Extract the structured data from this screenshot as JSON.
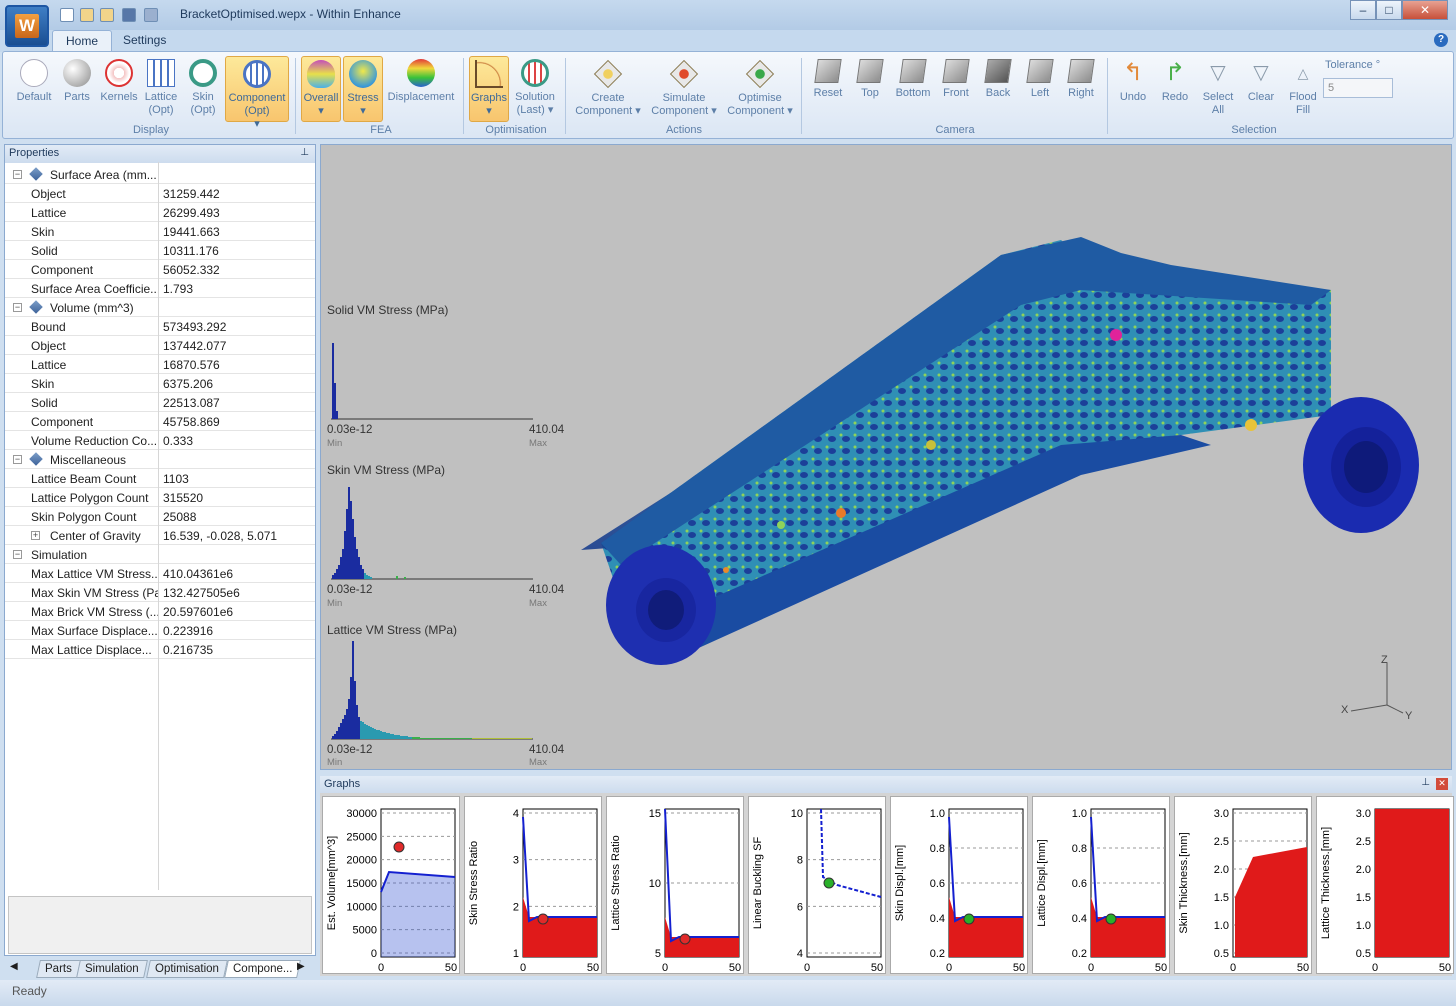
{
  "window": {
    "title": "BracketOptimised.wepx - Within Enhance",
    "app_letter": "W",
    "controls": {
      "minimize": "–",
      "maximize": "□",
      "close": "✕"
    }
  },
  "ribbon": {
    "tabs": [
      "Home",
      "Settings"
    ],
    "help": "?",
    "groups": {
      "display": "Display",
      "fea": "FEA",
      "optimisation": "Optimisation",
      "actions": "Actions",
      "camera": "Camera",
      "selection": "Selection"
    },
    "display_buttons": [
      "Default",
      "Parts",
      "Kernels",
      "Lattice (Opt)",
      "Skin (Opt)",
      "Component (Opt)"
    ],
    "fea_buttons": [
      "Overall",
      "Stress",
      "Displacement"
    ],
    "optimisation_buttons": [
      "Graphs",
      "Solution (Last)"
    ],
    "action_buttons": [
      "Create Component",
      "Simulate Component",
      "Optimise Component"
    ],
    "camera_buttons": [
      "Reset",
      "Top",
      "Bottom",
      "Front",
      "Back",
      "Left",
      "Right"
    ],
    "selection_buttons": [
      "Undo",
      "Redo",
      "Select All",
      "Clear",
      "Flood Fill"
    ],
    "tolerance_label": "Tolerance °",
    "tolerance_value": "5"
  },
  "properties": {
    "header": "Properties",
    "pin": "⊥",
    "rows": [
      {
        "k": "Surface Area (mm...",
        "v": "",
        "cat": true
      },
      {
        "k": "Object",
        "v": "31259.442"
      },
      {
        "k": "Lattice",
        "v": "26299.493"
      },
      {
        "k": "Skin",
        "v": "19441.663"
      },
      {
        "k": "Solid",
        "v": "10311.176"
      },
      {
        "k": "Component",
        "v": "56052.332"
      },
      {
        "k": "Surface Area Coefficie...",
        "v": "1.793"
      },
      {
        "k": "Volume (mm^3)",
        "v": "",
        "cat": true
      },
      {
        "k": "Bound",
        "v": "573493.292"
      },
      {
        "k": "Object",
        "v": "137442.077"
      },
      {
        "k": "Lattice",
        "v": "16870.576"
      },
      {
        "k": "Skin",
        "v": "6375.206"
      },
      {
        "k": "Solid",
        "v": "22513.087"
      },
      {
        "k": "Component",
        "v": "45758.869"
      },
      {
        "k": "Volume Reduction Co...",
        "v": "0.333"
      },
      {
        "k": "Miscellaneous",
        "v": "",
        "cat": true
      },
      {
        "k": "Lattice Beam Count",
        "v": "1103"
      },
      {
        "k": "Lattice Polygon Count",
        "v": "315520"
      },
      {
        "k": "Skin Polygon Count",
        "v": "25088"
      },
      {
        "k": "Center of Gravity",
        "v": "16.539, -0.028, 5.071",
        "sub": true
      },
      {
        "k": "Simulation",
        "v": "",
        "cat": true,
        "noicon": true
      },
      {
        "k": "Max Lattice VM Stress...",
        "v": "410.04361e6"
      },
      {
        "k": "Max Skin VM Stress (Pa)",
        "v": "132.427505e6"
      },
      {
        "k": "Max Brick VM Stress (...",
        "v": "20.597601e6"
      },
      {
        "k": "Max Surface Displace...",
        "v": "0.223916"
      },
      {
        "k": "Max Lattice Displace...",
        "v": "0.216735"
      }
    ],
    "bottom_tabs": [
      "Parts",
      "Simulation",
      "Optimisation",
      "Compone..."
    ]
  },
  "viewport": {
    "histograms": [
      {
        "title": "Solid VM Stress (MPa)",
        "min": "0.03e-12",
        "max": "410.04",
        "min_sub": "Min",
        "max_sub": "Max"
      },
      {
        "title": "Skin VM Stress (MPa)",
        "min": "0.03e-12",
        "max": "410.04",
        "min_sub": "Min",
        "max_sub": "Max"
      },
      {
        "title": "Lattice VM Stress (MPa)",
        "min": "0.03e-12",
        "max": "410.04",
        "min_sub": "Min",
        "max_sub": "Max"
      }
    ],
    "axes": {
      "z": "Z",
      "x": "X",
      "y": "Y"
    }
  },
  "graphs": {
    "header": "Graphs",
    "panels": [
      {
        "ylabel": "Est. Volume[mm^3]",
        "yticks": [
          "30000",
          "25000",
          "20000",
          "15000",
          "10000",
          "5000",
          "0"
        ],
        "xticks": [
          "0",
          "50"
        ]
      },
      {
        "ylabel": "Skin Stress Ratio",
        "yticks": [
          "4",
          "3",
          "2",
          "1"
        ],
        "xticks": [
          "0",
          "50"
        ]
      },
      {
        "ylabel": "Lattice Stress Ratio",
        "yticks": [
          "15",
          "10",
          "5"
        ],
        "xticks": [
          "0",
          "50"
        ]
      },
      {
        "ylabel": "Linear Buckling SF",
        "yticks": [
          "10",
          "8",
          "6",
          "4"
        ],
        "xticks": [
          "0",
          "50"
        ]
      },
      {
        "ylabel": "Skin Displ.[mm]",
        "yticks": [
          "1.0",
          "0.8",
          "0.6",
          "0.4",
          "0.2"
        ],
        "xticks": [
          "0",
          "50"
        ]
      },
      {
        "ylabel": "Lattice Displ.[mm]",
        "yticks": [
          "1.0",
          "0.8",
          "0.6",
          "0.4",
          "0.2"
        ],
        "xticks": [
          "0",
          "50"
        ]
      },
      {
        "ylabel": "Skin Thickness.[mm]",
        "yticks": [
          "3.0",
          "2.5",
          "2.0",
          "1.5",
          "1.0",
          "0.5"
        ],
        "xticks": [
          "0",
          "50"
        ]
      },
      {
        "ylabel": "Lattice Thickness.[mm]",
        "yticks": [
          "3.0",
          "2.5",
          "2.0",
          "1.5",
          "1.0",
          "0.5"
        ],
        "xticks": [
          "0",
          "50"
        ]
      }
    ]
  },
  "status": {
    "text": "Ready"
  }
}
